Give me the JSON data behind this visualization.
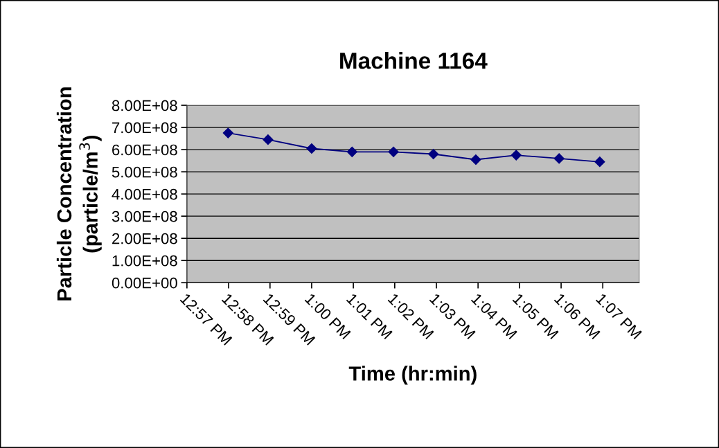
{
  "chart_data": {
    "type": "line",
    "title": "Machine 1164",
    "xlabel": "Time (hr:min)",
    "ylabel": "Particle Concentration\n(particle/m$^{3}$)",
    "x": [
      12.9665,
      12.9825,
      13.0,
      13.0162,
      13.0328,
      13.0488,
      13.0658,
      13.082,
      13.0992,
      13.1155
    ],
    "series": [
      {
        "color": "#000080",
        "values": [
          675000000,
          645000000,
          605000000,
          590000000,
          590000000,
          580000000,
          555000000,
          575000000,
          560000000,
          545000000
        ]
      }
    ],
    "xlim": [
      12.95,
      13.1313
    ],
    "xticks": [
      {
        "value": 12.95,
        "label": "12:57 PM"
      },
      {
        "value": 12.9667,
        "label": "12:58 PM"
      },
      {
        "value": 12.9833,
        "label": "12:59 PM"
      },
      {
        "value": 13.0,
        "label": "1:00 PM"
      },
      {
        "value": 13.0167,
        "label": "1:01 PM"
      },
      {
        "value": 13.0333,
        "label": "1:02 PM"
      },
      {
        "value": 13.05,
        "label": "1:03 PM"
      },
      {
        "value": 13.0667,
        "label": "1:04 PM"
      },
      {
        "value": 13.0833,
        "label": "1:05 PM"
      },
      {
        "value": 13.1,
        "label": "1:06 PM"
      },
      {
        "value": 13.1167,
        "label": "1:07 PM"
      }
    ],
    "ylim": [
      0,
      800000000
    ],
    "yticks": [
      {
        "value": 0,
        "label": "0.00E+00"
      },
      {
        "value": 100000000,
        "label": "1.00E+08"
      },
      {
        "value": 200000000,
        "label": "2.00E+08"
      },
      {
        "value": 300000000,
        "label": "3.00E+08"
      },
      {
        "value": 400000000,
        "label": "4.00E+08"
      },
      {
        "value": 500000000,
        "label": "5.00E+08"
      },
      {
        "value": 600000000,
        "label": "6.00E+08"
      },
      {
        "value": 700000000,
        "label": "7.00E+08"
      },
      {
        "value": 800000000,
        "label": "8.00E+08"
      }
    ],
    "grid": "y",
    "marker": "diamond",
    "line_style": "solid",
    "legend": false
  }
}
